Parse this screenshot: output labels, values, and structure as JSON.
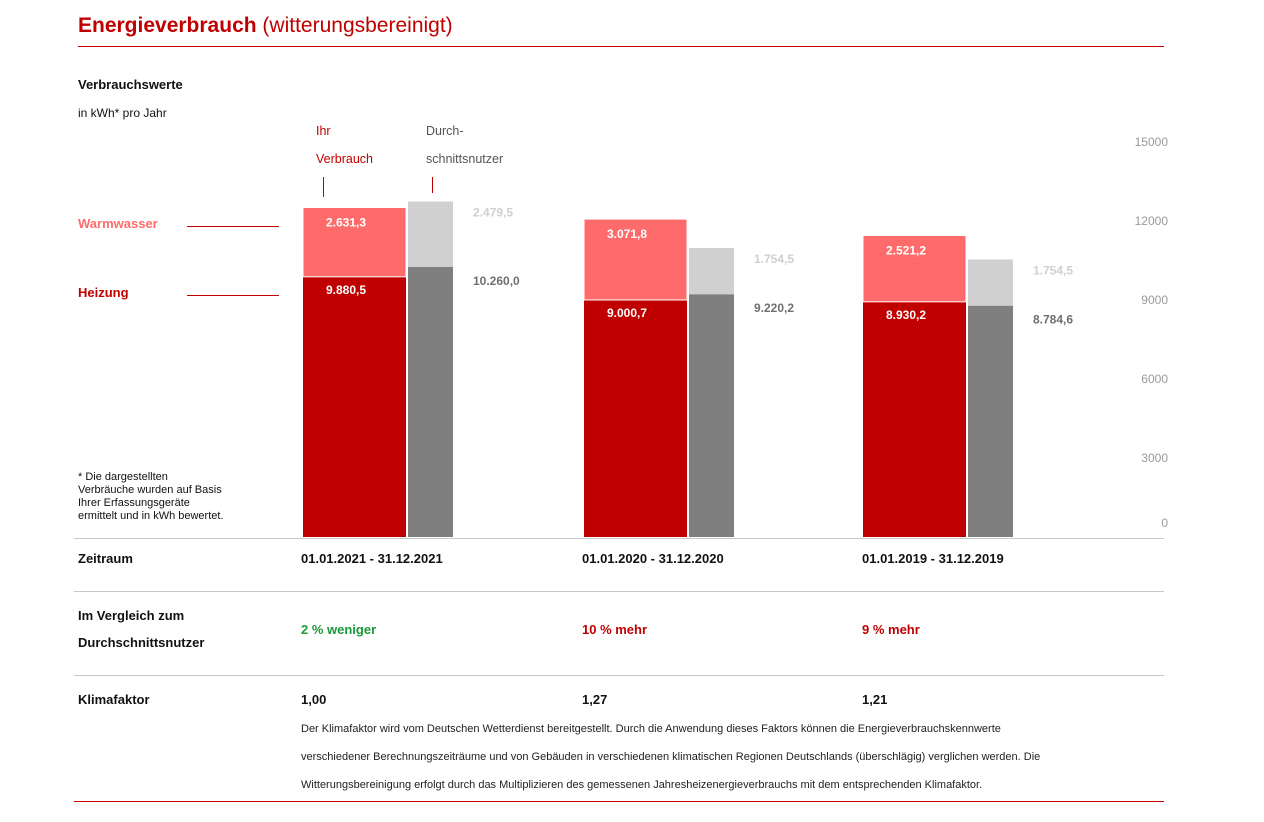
{
  "header": {
    "title": "Energieverbrauch",
    "subtitle": "(witterungsbereinigt)"
  },
  "chart_header": {
    "title": "Verbrauchswerte",
    "unit": "in kWh* pro Jahr"
  },
  "legend": {
    "own_line1": "Ihr",
    "own_line2": "Verbrauch",
    "avg_line1": "Durch-",
    "avg_line2": "schnittsnutzer",
    "warmwasser": "Warmwasser",
    "heizung": "Heizung"
  },
  "footnote": {
    "line1": "* Die dargestellten",
    "line2": "Verbräuche wurden auf Basis",
    "line3": "Ihrer Erfassungsgeräte",
    "line4": "ermittelt und in kWh bewertet."
  },
  "colors": {
    "heizung_own": "#c00000",
    "warmwasser_own": "#ff6b6b",
    "heizung_avg": "#7f7f7f",
    "warmwasser_avg": "#d0d0d0",
    "accent": "#c00000",
    "green": "#1a9a3a"
  },
  "chart_data": {
    "type": "bar",
    "stacked": true,
    "ylim": [
      0,
      15000
    ],
    "yticks": [
      0,
      3000,
      6000,
      9000,
      12000,
      15000
    ],
    "ytick_labels": [
      "0",
      "3000",
      "6000",
      "9000",
      "12000",
      "15000"
    ],
    "categories": [
      "01.01.2021 - 31.12.2021",
      "01.01.2020 - 31.12.2020",
      "01.01.2019 - 31.12.2019"
    ],
    "series": [
      {
        "name": "Heizung",
        "group": "Ihr Verbrauch",
        "values": [
          9880.5,
          9000.7,
          8930.2
        ],
        "labels": [
          "9.880,5",
          "9.000,7",
          "8.930,2"
        ]
      },
      {
        "name": "Warmwasser",
        "group": "Ihr Verbrauch",
        "values": [
          2631.3,
          3071.8,
          2521.2
        ],
        "labels": [
          "2.631,3",
          "3.071,8",
          "2.521,2"
        ]
      },
      {
        "name": "Heizung",
        "group": "Durchschnittsnutzer",
        "values": [
          10260.0,
          9220.2,
          8784.6
        ],
        "labels": [
          "10.260,0",
          "9.220,2",
          "8.784,6"
        ]
      },
      {
        "name": "Warmwasser",
        "group": "Durchschnittsnutzer",
        "values": [
          2479.5,
          1754.5,
          1754.5
        ],
        "labels": [
          "2.479,5",
          "1.754,5",
          "1.754,5"
        ]
      }
    ]
  },
  "table": {
    "zeitraum_label": "Zeitraum",
    "vergleich_label_line1": "Im Vergleich zum",
    "vergleich_label_line2": "Durchschnittsnutzer",
    "klimafaktor_label": "Klimafaktor",
    "periods": [
      "01.01.2021 - 31.12.2021",
      "01.01.2020 - 31.12.2020",
      "01.01.2019 - 31.12.2019"
    ],
    "comparison": [
      "2 % weniger",
      "10 % mehr",
      "9 % mehr"
    ],
    "klimafaktor": [
      "1,00",
      "1,27",
      "1,21"
    ],
    "note_line1": "Der Klimafaktor wird vom Deutschen Wetterdienst bereitgestellt. Durch die Anwendung dieses Faktors können die Energieverbrauchskennwerte",
    "note_line2": "verschiedener Berechnungszeiträume und von Gebäuden in verschiedenen klimatischen Regionen Deutschlands (überschlägig) verglichen werden. Die",
    "note_line3": "Witterungsbereinigung erfolgt durch das Multiplizieren des gemessenen Jahresheizenergieverbrauchs mit dem entsprechenden Klimafaktor."
  }
}
